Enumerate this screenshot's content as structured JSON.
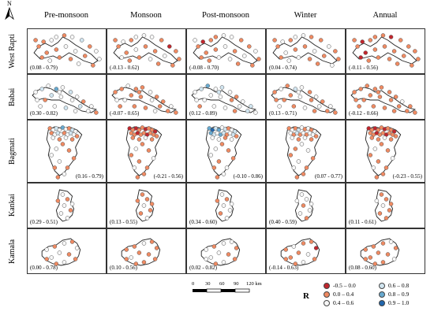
{
  "columns": [
    "Pre-monsoon",
    "Monsoon",
    "Post-monsoon",
    "Winter",
    "Annual"
  ],
  "rows": [
    {
      "name": "West Rapti",
      "ranges": [
        "(0.08 - 0.79)",
        "(-0.13 - 0.62)",
        "(-0.08 - 0.70)",
        "(0.04 - 0.74)",
        "(-0.11 - 0.56)"
      ]
    },
    {
      "name": "Babai",
      "ranges": [
        "(0.30 - 0.82)",
        "(-0.07 - 0.65)",
        "(0.12 - 0.89)",
        "(0.13 - 0.71)",
        "(-0.12 - 0.66)"
      ]
    },
    {
      "name": "Bagmati",
      "ranges": [
        "(0.16 - 0.79)",
        "(-0.21 - 0.56)",
        "(-0.10 - 0.86)",
        "(0.07 - 0.77)",
        "(-0.23 - 0.55)"
      ]
    },
    {
      "name": "Kankai",
      "ranges": [
        "(0.29 - 0.51)",
        "(0.13 - 0.55)",
        "(0.34 - 0.60)",
        "(0.40 - 0.59)",
        "(0.11 - 0.61)"
      ]
    },
    {
      "name": "Kamala",
      "ranges": [
        "(0.00 - 0.78)",
        "(0.10 - 0.56)",
        "(0.02 - 0.82)",
        "(-0.14 - 0.63)",
        "(0.08 - 0.60)"
      ]
    }
  ],
  "north_label": "N",
  "scale": {
    "ticks": [
      "0",
      "30",
      "60",
      "90",
      "120 km"
    ]
  },
  "legend": {
    "title": "R",
    "items": [
      {
        "label": "-0.5 – 0.0",
        "color": "#c0262d"
      },
      {
        "label": "0.0 – 0.4",
        "color": "#ef8a62"
      },
      {
        "label": "0.4 – 0.6",
        "color": "#f7f7f7"
      },
      {
        "label": "0.6 – 0.8",
        "color": "#d1e5f0"
      },
      {
        "label": "0.8 – 0.9",
        "color": "#67a9cf"
      },
      {
        "label": "0.9 – 1.0",
        "color": "#2166ac"
      }
    ]
  },
  "colors": {
    "neg": "#c0262d",
    "low": "#ef8a62",
    "mid": "#f7f7f7",
    "high": "#d1e5f0",
    "vhigh": "#67a9cf",
    "top": "#2166ac"
  }
}
